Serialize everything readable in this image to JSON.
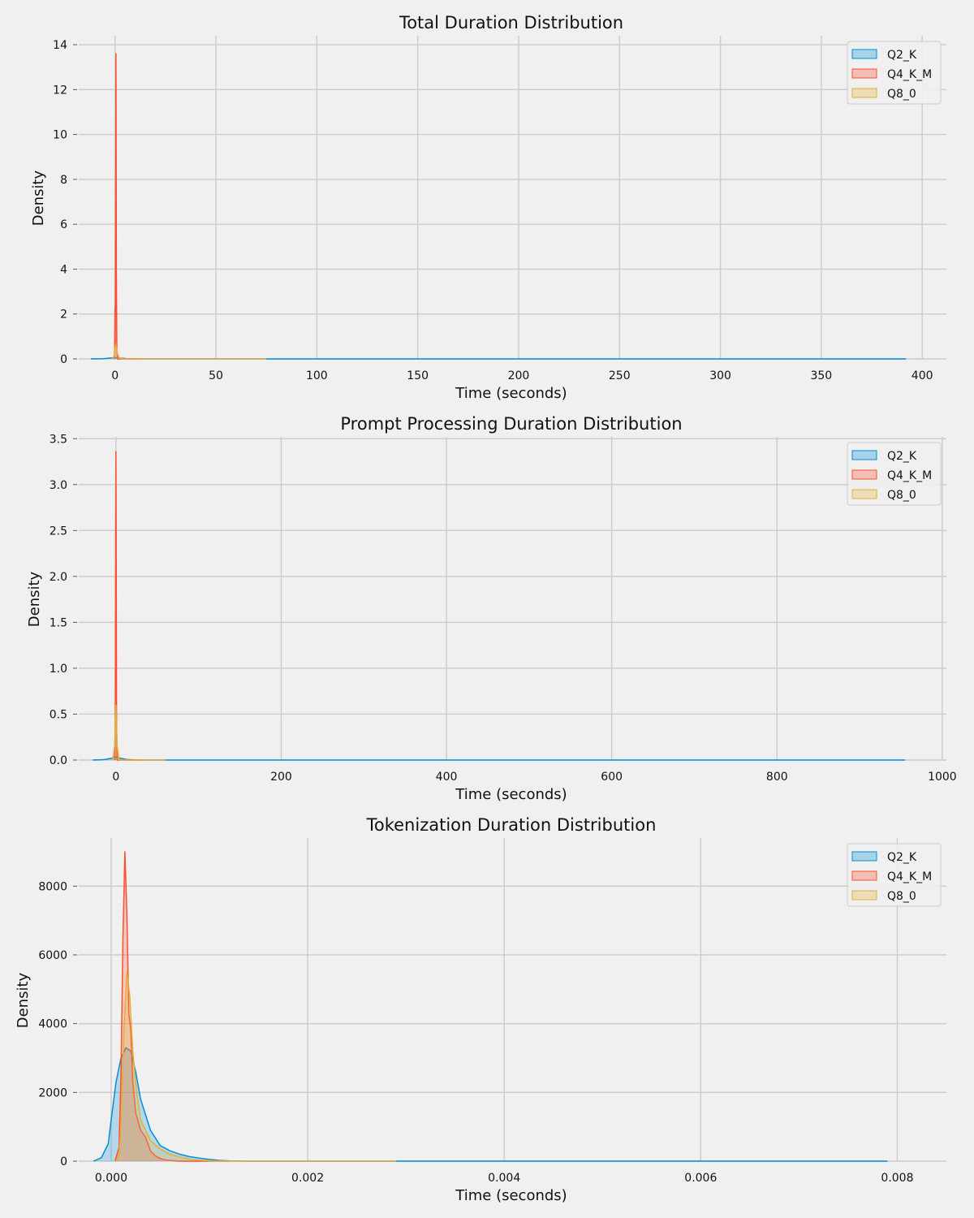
{
  "chart_data": [
    {
      "type": "kde",
      "title": "Total Duration Distribution",
      "xlabel": "Time (seconds)",
      "ylabel": "Density",
      "xlim": [
        -18,
        412
      ],
      "ylim": [
        0,
        14.4
      ],
      "xticks": [
        0,
        50,
        100,
        150,
        200,
        250,
        300,
        350,
        400
      ],
      "xtick_labels": [
        "0",
        "50",
        "100",
        "150",
        "200",
        "250",
        "300",
        "350",
        "400"
      ],
      "yticks": [
        0,
        2,
        4,
        6,
        8,
        10,
        12,
        14
      ],
      "ytick_labels": [
        "0",
        "2",
        "4",
        "6",
        "8",
        "10",
        "12",
        "14"
      ],
      "grid": true,
      "legend_position": "top-right",
      "series": [
        {
          "name": "Q2_K",
          "color": "#008fd5",
          "points": [
            [
              -12,
              0
            ],
            [
              -6,
              0.01
            ],
            [
              -2,
              0.04
            ],
            [
              0,
              0.06
            ],
            [
              2,
              0.04
            ],
            [
              6,
              0.01
            ],
            [
              12,
              0
            ],
            [
              392,
              0
            ]
          ]
        },
        {
          "name": "Q4_K_M",
          "color": "#fc4f30",
          "points": [
            [
              -0.6,
              0
            ],
            [
              -0.2,
              0.4
            ],
            [
              0,
              2.3
            ],
            [
              0.1,
              0.7
            ],
            [
              0.25,
              6
            ],
            [
              0.45,
              13.6
            ],
            [
              0.65,
              4
            ],
            [
              0.9,
              0.3
            ],
            [
              1.3,
              0
            ],
            [
              12,
              0
            ]
          ]
        },
        {
          "name": "Q8_0",
          "color": "#e5ae38",
          "points": [
            [
              -1.5,
              0
            ],
            [
              -0.5,
              0.1
            ],
            [
              0,
              0.5
            ],
            [
              0.4,
              0.65
            ],
            [
              1,
              0.3
            ],
            [
              2,
              0.05
            ],
            [
              4,
              0
            ],
            [
              75,
              0
            ]
          ]
        }
      ]
    },
    {
      "type": "kde",
      "title": "Prompt Processing Duration Distribution",
      "xlabel": "Time (seconds)",
      "ylabel": "Density",
      "xlim": [
        -45,
        1005
      ],
      "ylim": [
        0,
        3.52
      ],
      "xticks": [
        0,
        200,
        400,
        600,
        800,
        1000
      ],
      "xtick_labels": [
        "0",
        "200",
        "400",
        "600",
        "800",
        "1000"
      ],
      "yticks": [
        0,
        0.5,
        1.0,
        1.5,
        2.0,
        2.5,
        3.0,
        3.5
      ],
      "ytick_labels": [
        "0.0",
        "0.5",
        "1.0",
        "1.5",
        "2.0",
        "2.5",
        "3.0",
        "3.5"
      ],
      "grid": true,
      "legend_position": "top-right",
      "series": [
        {
          "name": "Q2_K",
          "color": "#008fd5",
          "points": [
            [
              -28,
              0
            ],
            [
              -14,
              0.005
            ],
            [
              -5,
              0.02
            ],
            [
              0,
              0.035
            ],
            [
              5,
              0.02
            ],
            [
              14,
              0.005
            ],
            [
              28,
              0
            ],
            [
              955,
              0
            ]
          ]
        },
        {
          "name": "Q4_K_M",
          "color": "#fc4f30",
          "points": [
            [
              -1.5,
              0
            ],
            [
              -0.8,
              0.4
            ],
            [
              -0.3,
              2.5
            ],
            [
              0,
              3.36
            ],
            [
              0.3,
              2.5
            ],
            [
              0.8,
              0.4
            ],
            [
              1.5,
              0
            ],
            [
              30,
              0
            ]
          ]
        },
        {
          "name": "Q8_0",
          "color": "#e5ae38",
          "points": [
            [
              -4,
              0
            ],
            [
              -1.5,
              0.15
            ],
            [
              0,
              0.6
            ],
            [
              1.5,
              0.15
            ],
            [
              4,
              0
            ],
            [
              60,
              0
            ]
          ]
        }
      ]
    },
    {
      "type": "kde",
      "title": "Tokenization Duration Distribution",
      "xlabel": "Time (seconds)",
      "ylabel": "Density",
      "xlim": [
        -0.00033,
        0.0085
      ],
      "ylim": [
        0,
        9400
      ],
      "xticks": [
        0,
        0.002,
        0.004,
        0.006,
        0.008
      ],
      "xtick_labels": [
        "0.000",
        "0.002",
        "0.004",
        "0.006",
        "0.008"
      ],
      "yticks": [
        0,
        2000,
        4000,
        6000,
        8000
      ],
      "ytick_labels": [
        "0",
        "2000",
        "4000",
        "6000",
        "8000"
      ],
      "grid": true,
      "legend_position": "top-right",
      "series": [
        {
          "name": "Q2_K",
          "color": "#008fd5",
          "points": [
            [
              -0.00018,
              0
            ],
            [
              -0.0001,
              100
            ],
            [
              -3e-05,
              500
            ],
            [
              0,
              1200
            ],
            [
              5e-05,
              2300
            ],
            [
              0.0001,
              3000
            ],
            [
              0.00015,
              3300
            ],
            [
              0.0002,
              3200
            ],
            [
              0.00025,
              2600
            ],
            [
              0.0003,
              1800
            ],
            [
              0.0004,
              900
            ],
            [
              0.0005,
              450
            ],
            [
              0.0006,
              300
            ],
            [
              0.0007,
              200
            ],
            [
              0.0008,
              130
            ],
            [
              0.0009,
              90
            ],
            [
              0.001,
              50
            ],
            [
              0.0011,
              25
            ],
            [
              0.0012,
              10
            ],
            [
              0.0014,
              0
            ],
            [
              0.0079,
              0
            ]
          ]
        },
        {
          "name": "Q4_K_M",
          "color": "#fc4f30",
          "points": [
            [
              4e-05,
              0
            ],
            [
              8e-05,
              400
            ],
            [
              0.0001,
              2500
            ],
            [
              0.00012,
              6500
            ],
            [
              0.00014,
              9000
            ],
            [
              0.00016,
              7200
            ],
            [
              0.00018,
              4300
            ],
            [
              0.0002,
              3800
            ],
            [
              0.00022,
              2300
            ],
            [
              0.00025,
              1400
            ],
            [
              0.0003,
              900
            ],
            [
              0.00035,
              700
            ],
            [
              0.0004,
              300
            ],
            [
              0.00045,
              150
            ],
            [
              0.0005,
              80
            ],
            [
              0.00055,
              40
            ],
            [
              0.0006,
              20
            ],
            [
              0.0007,
              0
            ],
            [
              0.0012,
              0
            ]
          ]
        },
        {
          "name": "Q8_0",
          "color": "#e5ae38",
          "points": [
            [
              5e-05,
              0
            ],
            [
              8e-05,
              200
            ],
            [
              0.0001,
              1000
            ],
            [
              0.00013,
              3800
            ],
            [
              0.00016,
              5500
            ],
            [
              0.00019,
              4800
            ],
            [
              0.00022,
              3200
            ],
            [
              0.00026,
              2000
            ],
            [
              0.0003,
              1200
            ],
            [
              0.00035,
              900
            ],
            [
              0.0004,
              600
            ],
            [
              0.0005,
              350
            ],
            [
              0.0006,
              200
            ],
            [
              0.0007,
              120
            ],
            [
              0.0008,
              60
            ],
            [
              0.0009,
              30
            ],
            [
              0.001,
              10
            ],
            [
              0.0012,
              0
            ],
            [
              0.0029,
              0
            ]
          ]
        }
      ]
    }
  ]
}
